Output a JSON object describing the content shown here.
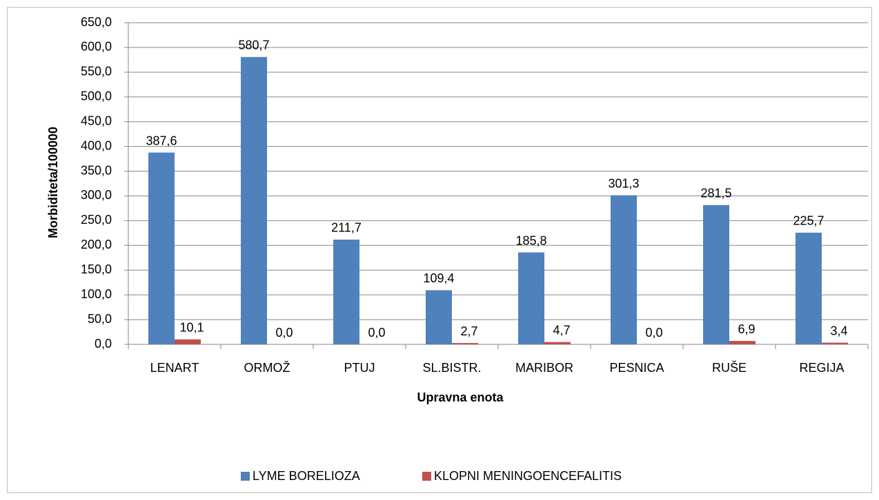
{
  "chart_data": {
    "type": "bar",
    "x_label": "Upravna enota",
    "y_label": "Morbiditeta/100000",
    "categories": [
      "LENART",
      "ORMOŽ",
      "PTUJ",
      "SL.BISTR.",
      "MARIBOR",
      "PESNICA",
      "RUŠE",
      "REGIJA"
    ],
    "series": [
      {
        "name": "LYME BORELIOZA",
        "color": "#4f81bd",
        "values": [
          387.6,
          580.7,
          211.7,
          109.4,
          185.8,
          301.3,
          281.5,
          225.7
        ],
        "value_labels": [
          "387,6",
          "580,7",
          "211,7",
          "109,4",
          "185,8",
          "301,3",
          "281,5",
          "225,7"
        ]
      },
      {
        "name": "KLOPNI MENINGOENCEFALITIS",
        "color": "#c0504d",
        "values": [
          10.1,
          0,
          0,
          2.7,
          4.7,
          0,
          6.9,
          3.4
        ],
        "value_labels": [
          "10,1",
          "0,0",
          "0,0",
          "2,7",
          "4,7",
          "0,0",
          "6,9",
          "3,4"
        ]
      }
    ],
    "ylim": [
      0,
      650
    ],
    "yticks": [
      {
        "value": 0,
        "label": "0,0"
      },
      {
        "value": 50,
        "label": "50,0"
      },
      {
        "value": 100,
        "label": "100,0"
      },
      {
        "value": 150,
        "label": "150,0"
      },
      {
        "value": 200,
        "label": "200,0"
      },
      {
        "value": 250,
        "label": "250,0"
      },
      {
        "value": 300,
        "label": "300,0"
      },
      {
        "value": 350,
        "label": "350,0"
      },
      {
        "value": 400,
        "label": "400,0"
      },
      {
        "value": 450,
        "label": "450,0"
      },
      {
        "value": 500,
        "label": "500,0"
      },
      {
        "value": 550,
        "label": "550,0"
      },
      {
        "value": 600,
        "label": "600,0"
      },
      {
        "value": 650,
        "label": "650,0"
      }
    ],
    "grid": true,
    "legend": "bottom"
  }
}
